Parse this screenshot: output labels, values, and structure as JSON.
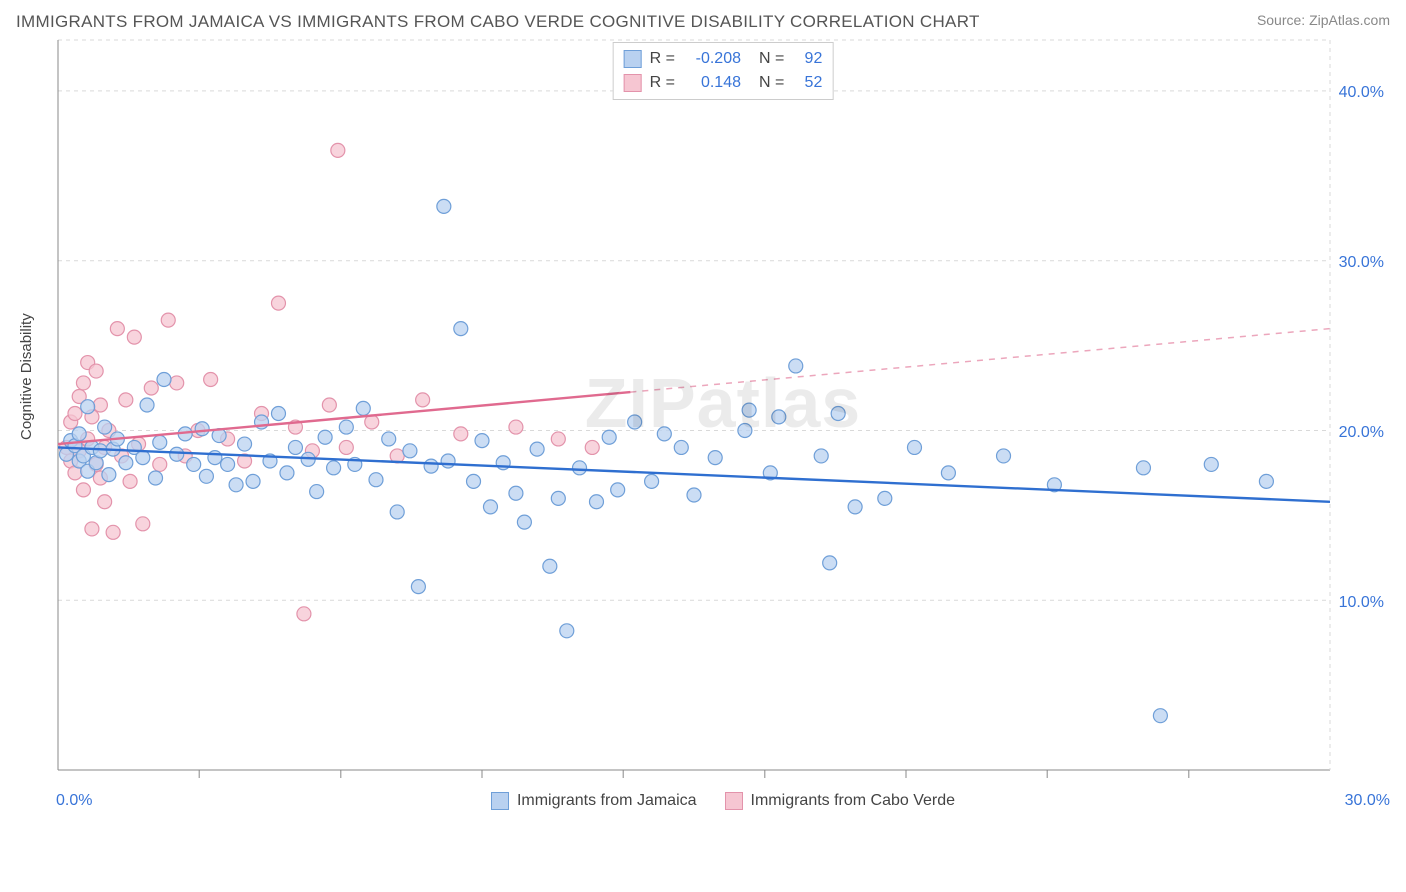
{
  "header": {
    "title": "IMMIGRANTS FROM JAMAICA VS IMMIGRANTS FROM CABO VERDE COGNITIVE DISABILITY CORRELATION CHART",
    "source": "Source: ZipAtlas.com"
  },
  "ylabel": "Cognitive Disability",
  "watermark": "ZIPatlas",
  "chart": {
    "type": "scatter",
    "xlim": [
      0,
      30
    ],
    "ylim": [
      0,
      43
    ],
    "x_ticks": [
      0,
      30
    ],
    "x_tick_labels": [
      "0.0%",
      "30.0%"
    ],
    "y_ticks": [
      10,
      20,
      30,
      40
    ],
    "y_tick_labels": [
      "10.0%",
      "20.0%",
      "30.0%",
      "40.0%"
    ],
    "minor_x_ticks": [
      3.33,
      6.67,
      10,
      13.33,
      16.67,
      20,
      23.33,
      26.67
    ],
    "grid_color": "#d9d9d9",
    "grid_dash": "4 4",
    "axis_color": "#888888",
    "background": "#ffffff",
    "marker_radius": 7,
    "marker_stroke_width": 1.2,
    "line_width": 2.4,
    "series": [
      {
        "id": "jamaica",
        "label": "Immigrants from Jamaica",
        "fill": "#b9d1f0",
        "stroke": "#6f9fd8",
        "line_color": "#2f6fd0",
        "R": "-0.208",
        "N": "92",
        "trend": {
          "x1": 0,
          "y1": 19.0,
          "x2": 30,
          "y2": 15.8,
          "dashed_from_x": null
        },
        "points": [
          [
            0.2,
            18.6
          ],
          [
            0.3,
            19.4
          ],
          [
            0.4,
            19.1
          ],
          [
            0.5,
            18.2
          ],
          [
            0.5,
            19.8
          ],
          [
            0.6,
            18.5
          ],
          [
            0.7,
            21.4
          ],
          [
            0.7,
            17.6
          ],
          [
            0.8,
            19.0
          ],
          [
            0.9,
            18.1
          ],
          [
            1.0,
            18.8
          ],
          [
            1.1,
            20.2
          ],
          [
            1.2,
            17.4
          ],
          [
            1.3,
            18.9
          ],
          [
            1.4,
            19.5
          ],
          [
            1.6,
            18.1
          ],
          [
            1.8,
            19.0
          ],
          [
            2.0,
            18.4
          ],
          [
            2.1,
            21.5
          ],
          [
            2.3,
            17.2
          ],
          [
            2.4,
            19.3
          ],
          [
            2.5,
            23.0
          ],
          [
            2.8,
            18.6
          ],
          [
            3.0,
            19.8
          ],
          [
            3.2,
            18.0
          ],
          [
            3.4,
            20.1
          ],
          [
            3.5,
            17.3
          ],
          [
            3.7,
            18.4
          ],
          [
            3.8,
            19.7
          ],
          [
            4.0,
            18.0
          ],
          [
            4.2,
            16.8
          ],
          [
            4.4,
            19.2
          ],
          [
            4.6,
            17.0
          ],
          [
            4.8,
            20.5
          ],
          [
            5.0,
            18.2
          ],
          [
            5.2,
            21.0
          ],
          [
            5.4,
            17.5
          ],
          [
            5.6,
            19.0
          ],
          [
            5.9,
            18.3
          ],
          [
            6.1,
            16.4
          ],
          [
            6.3,
            19.6
          ],
          [
            6.5,
            17.8
          ],
          [
            6.8,
            20.2
          ],
          [
            7.0,
            18.0
          ],
          [
            7.2,
            21.3
          ],
          [
            7.5,
            17.1
          ],
          [
            7.8,
            19.5
          ],
          [
            8.0,
            15.2
          ],
          [
            8.3,
            18.8
          ],
          [
            8.5,
            10.8
          ],
          [
            8.8,
            17.9
          ],
          [
            9.1,
            33.2
          ],
          [
            9.2,
            18.2
          ],
          [
            9.5,
            26.0
          ],
          [
            9.8,
            17.0
          ],
          [
            10.0,
            19.4
          ],
          [
            10.2,
            15.5
          ],
          [
            10.5,
            18.1
          ],
          [
            10.8,
            16.3
          ],
          [
            11.0,
            14.6
          ],
          [
            11.3,
            18.9
          ],
          [
            11.6,
            12.0
          ],
          [
            11.8,
            16.0
          ],
          [
            12.0,
            8.2
          ],
          [
            12.3,
            17.8
          ],
          [
            12.7,
            15.8
          ],
          [
            13.0,
            19.6
          ],
          [
            13.2,
            16.5
          ],
          [
            13.6,
            20.5
          ],
          [
            14.0,
            17.0
          ],
          [
            14.3,
            19.8
          ],
          [
            14.7,
            19.0
          ],
          [
            15.0,
            16.2
          ],
          [
            15.5,
            18.4
          ],
          [
            16.2,
            20.0
          ],
          [
            16.3,
            21.2
          ],
          [
            16.8,
            17.5
          ],
          [
            17.0,
            20.8
          ],
          [
            17.4,
            23.8
          ],
          [
            18.0,
            18.5
          ],
          [
            18.2,
            12.2
          ],
          [
            18.4,
            21.0
          ],
          [
            18.8,
            15.5
          ],
          [
            19.5,
            16.0
          ],
          [
            20.2,
            19.0
          ],
          [
            21.0,
            17.5
          ],
          [
            22.3,
            18.5
          ],
          [
            23.5,
            16.8
          ],
          [
            25.6,
            17.8
          ],
          [
            26.0,
            3.2
          ],
          [
            27.2,
            18.0
          ],
          [
            28.5,
            17.0
          ]
        ]
      },
      {
        "id": "caboverde",
        "label": "Immigrants from Cabo Verde",
        "fill": "#f6c6d2",
        "stroke": "#e393ab",
        "line_color": "#e06a8f",
        "R": "0.148",
        "N": "52",
        "trend": {
          "x1": 0,
          "y1": 19.2,
          "x2": 30,
          "y2": 26.0,
          "dashed_from_x": 13.5
        },
        "points": [
          [
            0.2,
            19.0
          ],
          [
            0.3,
            18.2
          ],
          [
            0.3,
            20.5
          ],
          [
            0.4,
            21.0
          ],
          [
            0.4,
            17.5
          ],
          [
            0.5,
            22.0
          ],
          [
            0.5,
            18.8
          ],
          [
            0.6,
            22.8
          ],
          [
            0.6,
            16.5
          ],
          [
            0.7,
            19.5
          ],
          [
            0.7,
            24.0
          ],
          [
            0.8,
            20.8
          ],
          [
            0.8,
            14.2
          ],
          [
            0.9,
            18.0
          ],
          [
            0.9,
            23.5
          ],
          [
            1.0,
            17.2
          ],
          [
            1.0,
            21.5
          ],
          [
            1.1,
            19.0
          ],
          [
            1.1,
            15.8
          ],
          [
            1.2,
            20.0
          ],
          [
            1.3,
            14.0
          ],
          [
            1.4,
            26.0
          ],
          [
            1.5,
            18.5
          ],
          [
            1.6,
            21.8
          ],
          [
            1.7,
            17.0
          ],
          [
            1.8,
            25.5
          ],
          [
            1.9,
            19.2
          ],
          [
            2.0,
            14.5
          ],
          [
            2.2,
            22.5
          ],
          [
            2.4,
            18.0
          ],
          [
            2.6,
            26.5
          ],
          [
            2.8,
            22.8
          ],
          [
            3.0,
            18.5
          ],
          [
            3.3,
            20.0
          ],
          [
            3.6,
            23.0
          ],
          [
            4.0,
            19.5
          ],
          [
            4.4,
            18.2
          ],
          [
            4.8,
            21.0
          ],
          [
            5.2,
            27.5
          ],
          [
            5.6,
            20.2
          ],
          [
            5.8,
            9.2
          ],
          [
            6.0,
            18.8
          ],
          [
            6.4,
            21.5
          ],
          [
            6.6,
            36.5
          ],
          [
            6.8,
            19.0
          ],
          [
            7.4,
            20.5
          ],
          [
            8.0,
            18.5
          ],
          [
            8.6,
            21.8
          ],
          [
            9.5,
            19.8
          ],
          [
            10.8,
            20.2
          ],
          [
            11.8,
            19.5
          ],
          [
            12.6,
            19.0
          ]
        ]
      }
    ]
  },
  "legend_stats": {
    "rows": [
      {
        "sw_fill": "#b9d1f0",
        "sw_stroke": "#6f9fd8",
        "R_lab": "R =",
        "R": "-0.208",
        "N_lab": "N =",
        "N": "92"
      },
      {
        "sw_fill": "#f6c6d2",
        "sw_stroke": "#e393ab",
        "R_lab": "R =",
        "R": "0.148",
        "N_lab": "N =",
        "N": "52"
      }
    ]
  },
  "bottom_legend": [
    {
      "sw_fill": "#b9d1f0",
      "sw_stroke": "#6f9fd8",
      "label": "Immigrants from Jamaica"
    },
    {
      "sw_fill": "#f6c6d2",
      "sw_stroke": "#e393ab",
      "label": "Immigrants from Cabo Verde"
    }
  ]
}
